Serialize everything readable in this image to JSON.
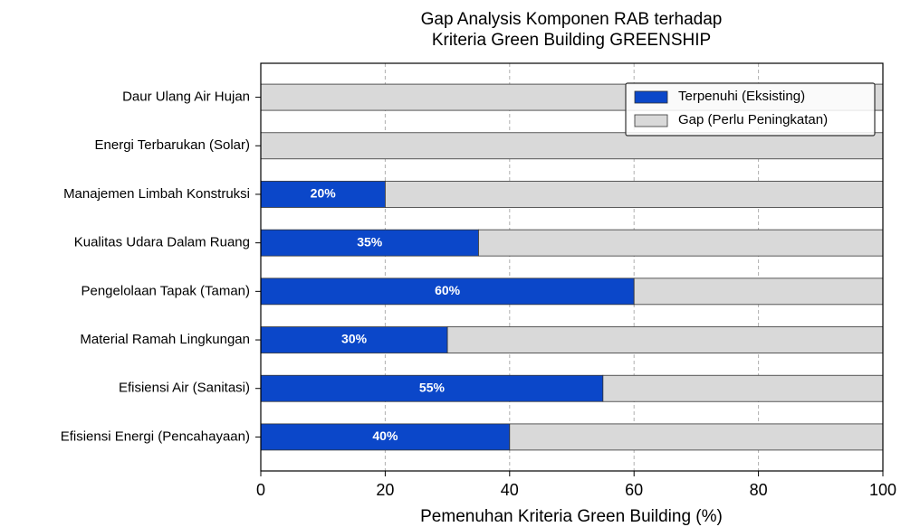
{
  "chart_data": {
    "type": "bar",
    "orientation": "horizontal",
    "stacked": true,
    "title": [
      "Gap Analysis Komponen RAB terhadap",
      "Kriteria Green Building GREENSHIP"
    ],
    "xlabel": "Pemenuhan Kriteria Green Building (%)",
    "categories": [
      "Efisiensi Energi (Pencahayaan)",
      "Efisiensi Air (Sanitasi)",
      "Material Ramah Lingkungan",
      "Pengelolaan Tapak (Taman)",
      "Kualitas Udara Dalam Ruang",
      "Manajemen Limbah Konstruksi",
      "Energi Terbarukan (Solar)",
      "Daur Ulang Air Hujan"
    ],
    "series": [
      {
        "name": "Terpenuhi (Eksisting)",
        "color": "#0b47c9",
        "values": [
          40,
          55,
          30,
          60,
          35,
          20,
          0,
          0
        ],
        "value_labels": [
          "40%",
          "55%",
          "30%",
          "60%",
          "35%",
          "20%",
          null,
          null
        ]
      },
      {
        "name": "Gap (Perlu Peningkatan)",
        "color": "#d9d9d9",
        "values": [
          60,
          45,
          70,
          40,
          65,
          80,
          100,
          100
        ]
      }
    ],
    "xlim": [
      0,
      100
    ],
    "xticks": [
      0,
      20,
      40,
      60,
      80,
      100
    ],
    "grid": true,
    "legend": "upper right"
  }
}
